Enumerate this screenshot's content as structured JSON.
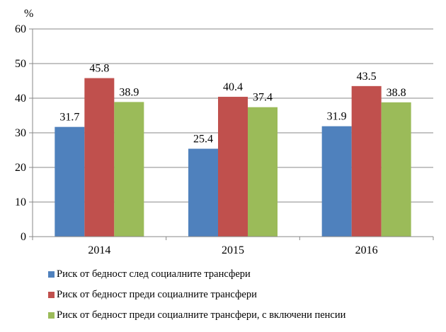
{
  "chart_data": {
    "type": "bar",
    "y_unit_label": "%",
    "categories": [
      "2014",
      "2015",
      "2016"
    ],
    "series": [
      {
        "name": "Риск от бедност след социалните трансфери",
        "color": "#4F81BD",
        "values": [
          31.7,
          25.4,
          31.9
        ]
      },
      {
        "name": "Риск от бедност преди социалните трансфери",
        "color": "#C0504D",
        "values": [
          45.8,
          40.4,
          43.5
        ]
      },
      {
        "name": "Риск от бедност преди социалните трансфери, с включени пенсии",
        "color": "#9BBB59",
        "values": [
          38.9,
          37.4,
          38.8
        ]
      }
    ],
    "value_labels": [
      [
        "31.7",
        "25.4",
        "31.9"
      ],
      [
        "45.8",
        "40.4",
        "43.5"
      ],
      [
        "38.9",
        "37.4",
        "38.8"
      ]
    ],
    "ylim": [
      0,
      60
    ],
    "yticks": [
      0,
      10,
      20,
      30,
      40,
      50,
      60
    ],
    "ytick_labels": [
      "0",
      "10",
      "20",
      "30",
      "40",
      "50",
      "60"
    ],
    "grid": true,
    "legend_position": "bottom",
    "gridline_color": "#888888"
  }
}
